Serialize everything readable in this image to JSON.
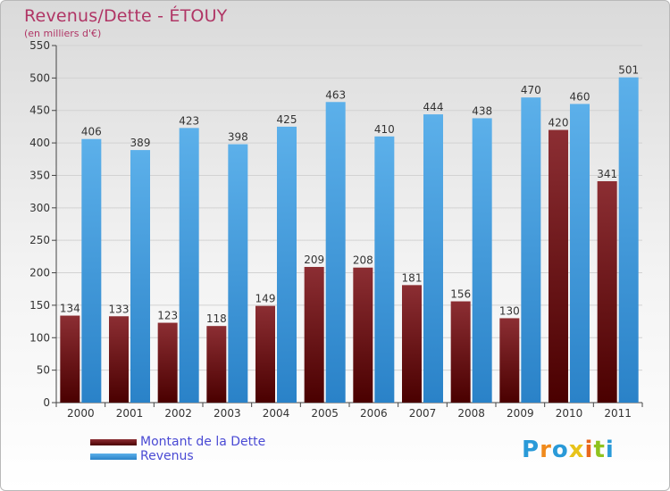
{
  "title": "Revenus/Dette - ÉTOUY",
  "subtitle": "(en milliers d'€)",
  "logo": {
    "text": "Proxiti",
    "letter_colors": [
      "#2a9ad8",
      "#f08a1c",
      "#2a9ad8",
      "#e8c31a",
      "#e8671c",
      "#8fc31f",
      "#2a9ad8"
    ]
  },
  "colors": {
    "dette": "#7a1a1f",
    "revenus": "#3a9ee0"
  },
  "chart_data": {
    "type": "bar",
    "title": "Revenus/Dette - ÉTOUY",
    "ylabel": "",
    "xlabel": "",
    "categories": [
      "2000",
      "2001",
      "2002",
      "2003",
      "2004",
      "2005",
      "2006",
      "2007",
      "2008",
      "2009",
      "2010",
      "2011"
    ],
    "series": [
      {
        "name": "Montant de la Dette",
        "values": [
          134,
          133,
          123,
          118,
          149,
          209,
          208,
          181,
          156,
          130,
          420,
          341
        ]
      },
      {
        "name": "Revenus",
        "values": [
          406,
          389,
          423,
          398,
          425,
          463,
          410,
          444,
          438,
          470,
          460,
          501
        ]
      }
    ],
    "ylim": [
      0,
      550
    ],
    "yticks": [
      0,
      50,
      100,
      150,
      200,
      250,
      300,
      350,
      400,
      450,
      500,
      550
    ],
    "grid": true,
    "legend": "bottom-left"
  }
}
